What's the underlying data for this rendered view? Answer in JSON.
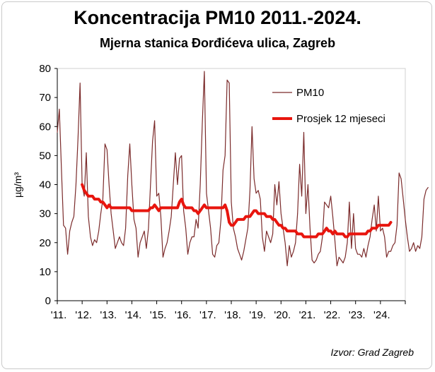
{
  "chart_data": {
    "type": "line",
    "title": "Koncentracija PM10 2011.-2024.",
    "subtitle": "Mjerna stanica Đorđićeva ulica, Zagreb",
    "ylabel": "µg/m³",
    "xlabel": "",
    "ylim": [
      0,
      80
    ],
    "yticks": [
      0,
      10,
      20,
      30,
      40,
      50,
      60,
      70,
      80
    ],
    "x_start": 2011,
    "x_end": 2025,
    "xtick_labels": [
      "'11.",
      "'12.",
      "'13.",
      "'14.",
      "'15.",
      "'16.",
      "'17.",
      "'18.",
      "'19.",
      "'20.",
      "'21.",
      "'22.",
      "'23.",
      "'24."
    ],
    "grid": false,
    "legend_position": "top-right",
    "source": "Izvor: Grad Zagreb",
    "series": [
      {
        "name": "PM10",
        "color": "#7b2b2b",
        "values": [
          58,
          66,
          45,
          26,
          25,
          16,
          24,
          27,
          29,
          40,
          56,
          75,
          40,
          36,
          51,
          29,
          22,
          19,
          21,
          20,
          24,
          30,
          35,
          54,
          52,
          40,
          30,
          24,
          18,
          20,
          22,
          20,
          19,
          25,
          43,
          54,
          40,
          28,
          25,
          15,
          20,
          22,
          24,
          18,
          25,
          40,
          55,
          62,
          36,
          37,
          29,
          15,
          18,
          20,
          24,
          29,
          40,
          51,
          40,
          49,
          50,
          31,
          25,
          16,
          20,
          22,
          22,
          28,
          25,
          40,
          61,
          79,
          37,
          31,
          25,
          16,
          15,
          19,
          20,
          28,
          45,
          50,
          76,
          75,
          34,
          25,
          22,
          18,
          16,
          14,
          17,
          21,
          25,
          38,
          60,
          42,
          37,
          38,
          35,
          22,
          17,
          24,
          22,
          20,
          23,
          40,
          33,
          41,
          30,
          25,
          20,
          12,
          19,
          15,
          17,
          20,
          30,
          47,
          36,
          58,
          30,
          40,
          25,
          14,
          13,
          14,
          16,
          17,
          22,
          34,
          33,
          32,
          36,
          29,
          21,
          12,
          15,
          14,
          13,
          15,
          20,
          34,
          18,
          30,
          18,
          16,
          16,
          15,
          18,
          15,
          19,
          22,
          28,
          33,
          24,
          36,
          24,
          25,
          22,
          15,
          17,
          17,
          19,
          20,
          26,
          44,
          42,
          35,
          28,
          22,
          17,
          18,
          20,
          17,
          19,
          18,
          22,
          35,
          38,
          39
        ]
      },
      {
        "name": "Prosjek 12 mjeseci",
        "color": "#e8150e",
        "start_year": 2012,
        "values": [
          40,
          38,
          37,
          36,
          36,
          36,
          35,
          35,
          35,
          34,
          34,
          33,
          32,
          33,
          32,
          32,
          32,
          32,
          32,
          32,
          32,
          32,
          32,
          32,
          31,
          31,
          31,
          31,
          31,
          31,
          31,
          31,
          31,
          32,
          32,
          33,
          32,
          31,
          32,
          32,
          32,
          32,
          32,
          32,
          32,
          32,
          32,
          34,
          35,
          33,
          32,
          32,
          32,
          32,
          31,
          31,
          30,
          31,
          32,
          33,
          32,
          32,
          32,
          32,
          32,
          32,
          32,
          32,
          32,
          33,
          31,
          27,
          26,
          26,
          27,
          28,
          28,
          28,
          28,
          29,
          29,
          29,
          30,
          31,
          31,
          30,
          30,
          30,
          30,
          29,
          29,
          29,
          28,
          28,
          27,
          26,
          26,
          25,
          25,
          24,
          24,
          24,
          24,
          24,
          23,
          23,
          23,
          22,
          22,
          22,
          22,
          22,
          22,
          22,
          23,
          23,
          23,
          24,
          25,
          24,
          24,
          23,
          24,
          23,
          23,
          23,
          23,
          22,
          22,
          23,
          23,
          23,
          23,
          23,
          23,
          23,
          23,
          23,
          24,
          24,
          25,
          25,
          25,
          26,
          26,
          26,
          26,
          26,
          26,
          27
        ]
      }
    ]
  }
}
